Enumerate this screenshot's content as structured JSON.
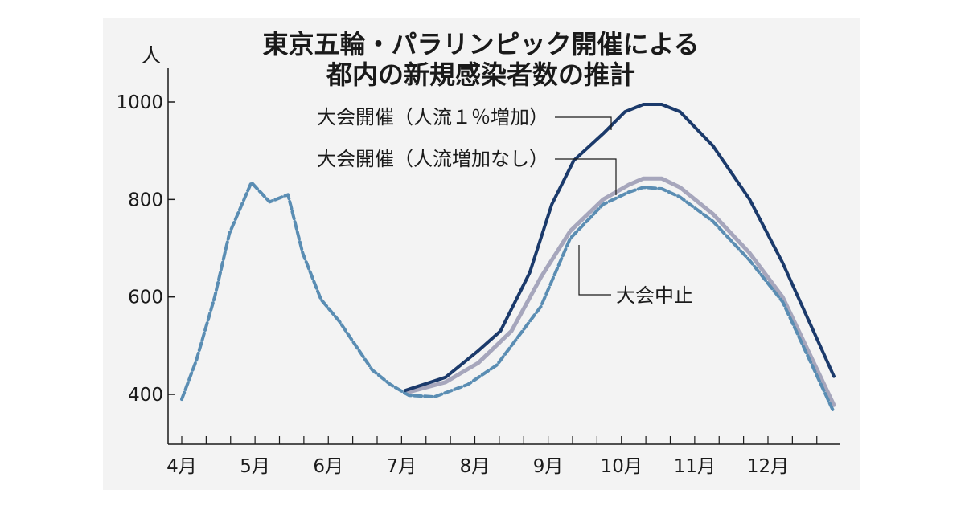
{
  "chart_data": {
    "type": "line",
    "title_lines": [
      "東京五輪・パラリンピック開催による",
      "都内の新規感染者数の推計"
    ],
    "y_unit": "人",
    "ylim": [
      380,
      1000
    ],
    "y_ticks": [
      400,
      600,
      800,
      1000
    ],
    "x_ticks": [
      "4月",
      "5月",
      "6月",
      "7月",
      "8月",
      "9月",
      "10月",
      "11月",
      "12月"
    ],
    "series": [
      {
        "name": "大会開催（人流１％増加）",
        "color": "#1b3a6b",
        "style": "solid",
        "points": [
          [
            7.05,
            408
          ],
          [
            7.6,
            435
          ],
          [
            8.05,
            490
          ],
          [
            8.35,
            530
          ],
          [
            8.75,
            650
          ],
          [
            9.05,
            790
          ],
          [
            9.35,
            880
          ],
          [
            9.75,
            935
          ],
          [
            10.05,
            980
          ],
          [
            10.3,
            995
          ],
          [
            10.55,
            995
          ],
          [
            10.8,
            980
          ],
          [
            11.25,
            910
          ],
          [
            11.75,
            800
          ],
          [
            12.2,
            670
          ],
          [
            12.9,
            437
          ]
        ]
      },
      {
        "name": "大会開催（人流増加なし）",
        "color": "#a6a6bc",
        "style": "solid",
        "points": [
          [
            7.05,
            403
          ],
          [
            7.6,
            425
          ],
          [
            8.05,
            465
          ],
          [
            8.5,
            530
          ],
          [
            8.9,
            640
          ],
          [
            9.3,
            735
          ],
          [
            9.75,
            800
          ],
          [
            10.1,
            830
          ],
          [
            10.3,
            843
          ],
          [
            10.55,
            843
          ],
          [
            10.8,
            825
          ],
          [
            11.25,
            770
          ],
          [
            11.75,
            690
          ],
          [
            12.2,
            600
          ],
          [
            12.9,
            378
          ]
        ]
      },
      {
        "name": "大会中止",
        "color": "#5a8db3",
        "style": "dashed",
        "points": [
          [
            4.0,
            390
          ],
          [
            4.2,
            470
          ],
          [
            4.45,
            600
          ],
          [
            4.65,
            730
          ],
          [
            4.95,
            835
          ],
          [
            5.2,
            795
          ],
          [
            5.45,
            810
          ],
          [
            5.65,
            690
          ],
          [
            5.9,
            595
          ],
          [
            6.15,
            550
          ],
          [
            6.6,
            450
          ],
          [
            6.85,
            420
          ],
          [
            7.1,
            398
          ],
          [
            7.45,
            395
          ],
          [
            7.9,
            420
          ],
          [
            8.3,
            460
          ],
          [
            8.9,
            580
          ],
          [
            9.3,
            720
          ],
          [
            9.75,
            790
          ],
          [
            10.1,
            815
          ],
          [
            10.3,
            825
          ],
          [
            10.55,
            822
          ],
          [
            10.8,
            805
          ],
          [
            11.25,
            755
          ],
          [
            11.75,
            675
          ],
          [
            12.2,
            590
          ],
          [
            12.9,
            363
          ]
        ]
      }
    ],
    "annotations": [
      {
        "text": "大会開催（人流１％増加）",
        "series": 0
      },
      {
        "text": "大会開催（人流増加なし）",
        "series": 1
      },
      {
        "text": "大会中止",
        "series": 2
      }
    ]
  }
}
